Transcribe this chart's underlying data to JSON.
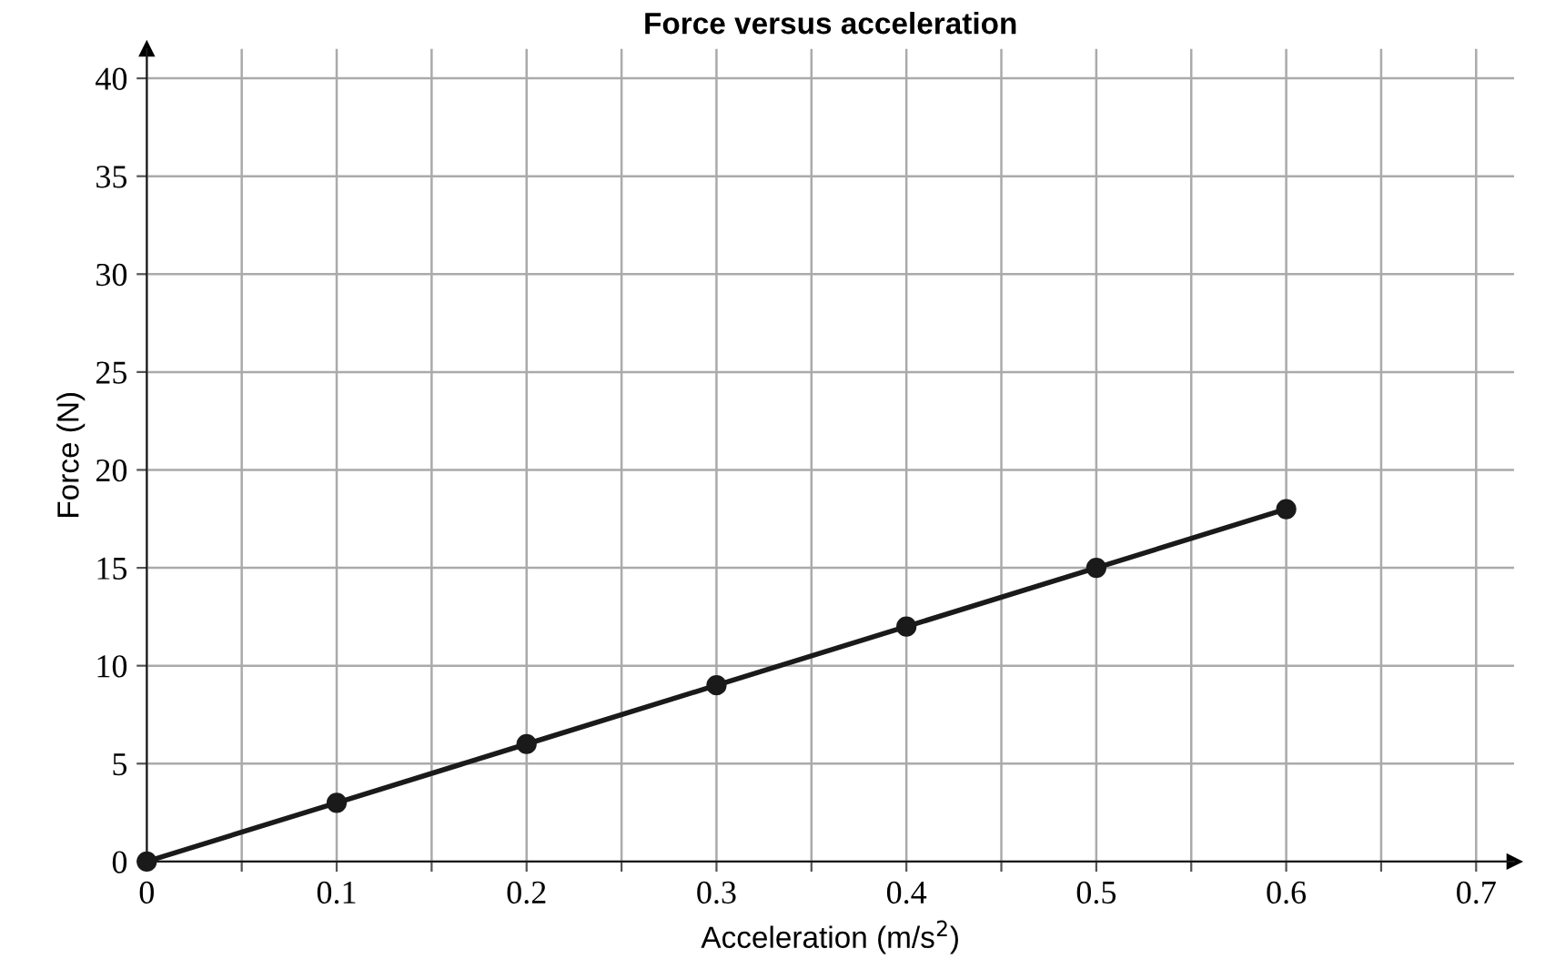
{
  "chart_data": {
    "type": "line",
    "title": "Force versus acceleration",
    "xlabel": "Acceleration (m/s$^{2}$)",
    "ylabel": "Force (N)",
    "x": [
      0,
      0.1,
      0.2,
      0.3,
      0.4,
      0.5,
      0.6
    ],
    "series": [
      {
        "color": "#1a1a1a",
        "values": [
          0,
          3,
          6,
          9,
          12,
          15,
          18
        ]
      }
    ],
    "xlim": [
      0,
      0.72
    ],
    "ylim": [
      0,
      41.5
    ],
    "xticks": [
      0,
      {
        "value": 0.05,
        "label": null
      },
      0.1,
      {
        "value": 0.15,
        "label": null
      },
      0.2,
      {
        "value": 0.25,
        "label": null
      },
      0.3,
      {
        "value": 0.35,
        "label": null
      },
      0.4,
      {
        "value": 0.45,
        "label": null
      },
      0.5,
      {
        "value": 0.55,
        "label": null
      },
      0.6,
      {
        "value": 0.65,
        "label": null
      },
      0.7
    ],
    "yticks": [
      0,
      5,
      10,
      15,
      20,
      25,
      30,
      35,
      40
    ],
    "grid": true,
    "marker": "circle",
    "line_style": "solid",
    "legend": false
  }
}
